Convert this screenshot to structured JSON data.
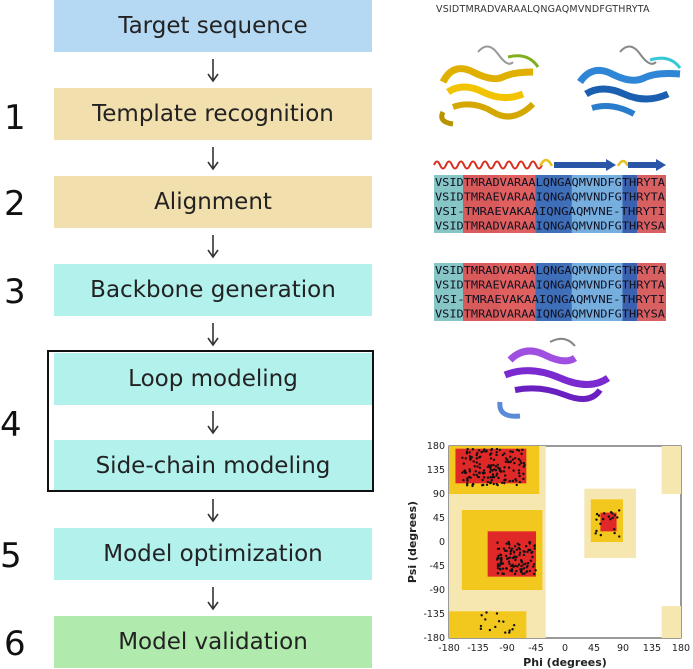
{
  "steps": [
    {
      "label": "Target sequence",
      "number": ""
    },
    {
      "label": "Template recognition",
      "number": "1"
    },
    {
      "label": "Alignment",
      "number": "2"
    },
    {
      "label": "Backbone generation",
      "number": "3"
    },
    {
      "label": "Loop modeling",
      "number": "4"
    },
    {
      "label": "Side-chain modeling",
      "number": ""
    },
    {
      "label": "Model optimization",
      "number": "5"
    },
    {
      "label": "Model validation",
      "number": "6"
    }
  ],
  "sequence": "VSIDTMRADVARAALQNGAQMVNDFGTHRYTA",
  "alignment1": [
    "VSIDTMRADVARAALQNGAQMVNDFGTHRYTA",
    "VSIDTMRAEVARAAIQNGAQMVNDFGTHRYTA",
    "VSI-TMRAEVAKAAIQNGAQMVNE-THRYTI",
    "VSIDTMRADVARAAIQNGAQMVNDFGTHRYSA"
  ],
  "alignment2": [
    "VSIDTMRADVARAALQNGAQMVNDFGTHRYTA",
    "VSIDTMRAEVARAAIQNGAQMVNDFGTHRYTA",
    "VSI-TMRAEVAKAAIQNGAQMVNE-THRYTI",
    "VSIDTMRADVARAAIQNGAQMVNDFGTHRYSA"
  ],
  "ramachandran": {
    "xlabel": "Phi (degrees)",
    "ylabel": "Psi (degrees)",
    "xticks": [
      "-180",
      "-135",
      "-90",
      "-45",
      "0",
      "45",
      "90",
      "135",
      "180"
    ],
    "yticks": [
      "180",
      "135",
      "90",
      "45",
      "0",
      "-45",
      "-90",
      "-135",
      "-180"
    ]
  },
  "colors": {
    "blue": "#b5d9f3",
    "tan": "#f2dfae",
    "cyan": "#b3f1ed",
    "green": "#b0ebad"
  }
}
